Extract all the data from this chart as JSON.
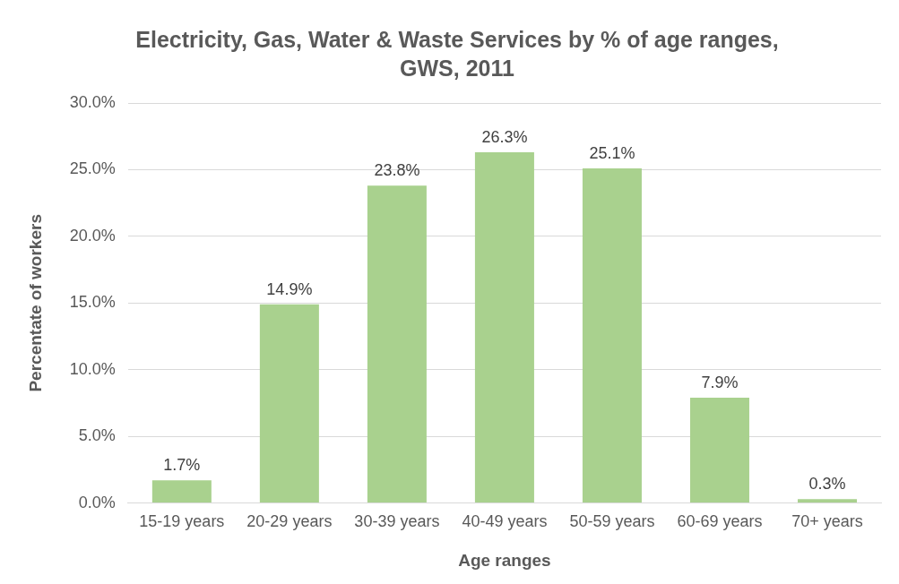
{
  "chart_data": {
    "type": "bar",
    "title": "Electricity, Gas, Water & Waste Services by %  of age ranges, GWS, 2011",
    "xlabel": "Age ranges",
    "ylabel": "Percentate of workers",
    "categories": [
      "15-19 years",
      "20-29 years",
      "30-39 years",
      "40-49 years",
      "50-59 years",
      "60-69 years",
      "70+ years"
    ],
    "values": [
      1.7,
      14.9,
      23.8,
      26.3,
      25.1,
      7.9,
      0.3
    ],
    "value_labels": [
      "1.7%",
      "14.9%",
      "23.8%",
      "26.3%",
      "25.1%",
      "7.9%",
      "0.3%"
    ],
    "color": "#a9d18e",
    "ylim": [
      0,
      30
    ],
    "yticks": [
      {
        "value": 0,
        "label": "0.0%"
      },
      {
        "value": 5,
        "label": "5.0%"
      },
      {
        "value": 10,
        "label": "10.0%"
      },
      {
        "value": 15,
        "label": "15.0%"
      },
      {
        "value": 20,
        "label": "20.0%"
      },
      {
        "value": 25,
        "label": "25.0%"
      },
      {
        "value": 30,
        "label": "30.0%"
      }
    ],
    "grid": "y",
    "legend": false
  }
}
